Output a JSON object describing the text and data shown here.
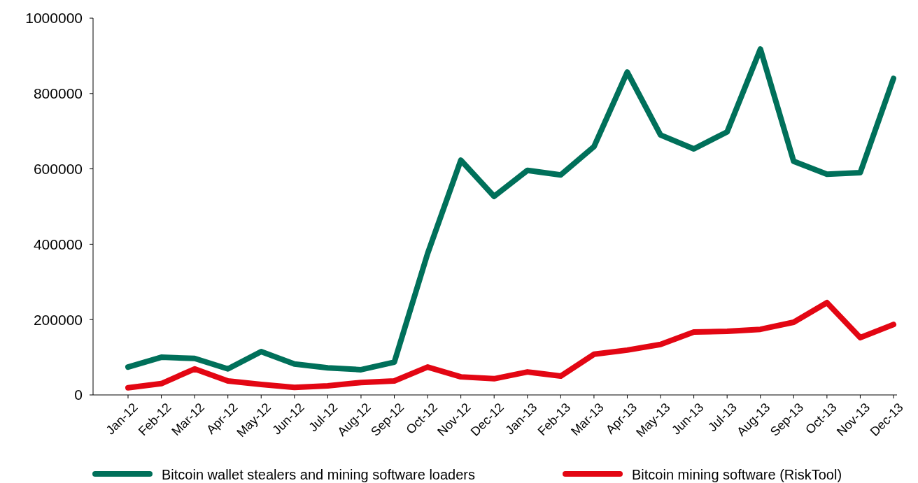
{
  "chart_data": {
    "type": "line",
    "categories": [
      "Jan-12",
      "Feb-12",
      "Mar-12",
      "Apr-12",
      "May-12",
      "Jun-12",
      "Jul-12",
      "Aug-12",
      "Sep-12",
      "Oct-12",
      "Nov-12",
      "Dec-12",
      "Jan-13",
      "Feb-13",
      "Mar-13",
      "Apr-13",
      "May-13",
      "Jun-13",
      "Jul-13",
      "Aug-13",
      "Sep-13",
      "Oct-13",
      "Nov-13",
      "Dec-13"
    ],
    "series": [
      {
        "name": "Bitcoin wallet stealers and mining software loaders",
        "color": "#00705a",
        "values": [
          74000,
          100000,
          97000,
          69000,
          115000,
          82000,
          72000,
          67000,
          87000,
          375000,
          623000,
          527000,
          596000,
          584000,
          659000,
          857000,
          690000,
          653000,
          698000,
          918000,
          620000,
          586000,
          590000,
          840000
        ]
      },
      {
        "name": "Bitcoin mining software (RiskTool)",
        "color": "#e30613",
        "values": [
          19000,
          30000,
          69000,
          37000,
          28000,
          20000,
          24000,
          33000,
          37000,
          74000,
          48000,
          43000,
          61000,
          50000,
          108000,
          119000,
          134000,
          167000,
          169000,
          174000,
          193000,
          245000,
          152000,
          187000
        ]
      }
    ],
    "ylim": [
      0,
      1000000
    ],
    "yticks": [
      0,
      200000,
      400000,
      600000,
      800000,
      1000000
    ],
    "grid": false,
    "legend": "bottom",
    "marker": "none",
    "line_style": "solid"
  }
}
